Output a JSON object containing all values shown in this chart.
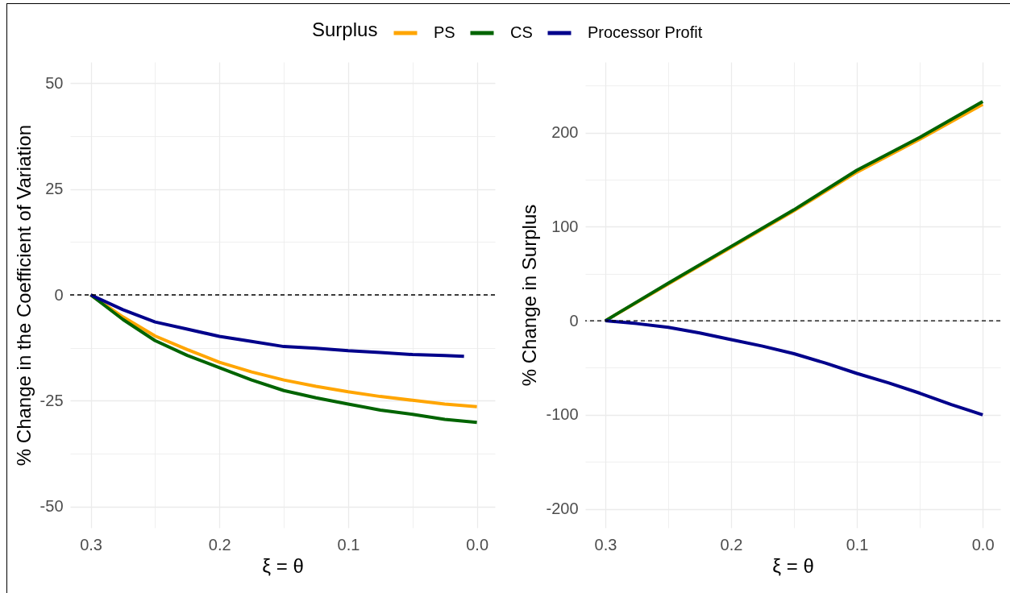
{
  "chart_data": [
    {
      "type": "line",
      "xlabel": "ξ = θ",
      "ylabel": "% Change in the Coefficient of Variation",
      "legend": "top",
      "legend_title": "Surplus",
      "grid": true,
      "xlim": [
        0.316,
        -0.014
      ],
      "ylim": [
        -55,
        55
      ],
      "xticks": [
        0.3,
        0.2,
        0.1,
        {
          "value": 0,
          "label": "0.0"
        }
      ],
      "yticks": [
        -50,
        -25,
        0,
        25,
        50
      ],
      "ref_lines": [
        {
          "axis": "y",
          "value": 0,
          "color": "#000000",
          "line_style": "dashed"
        }
      ],
      "x": [
        0.3,
        0.275,
        0.25,
        0.225,
        0.2,
        0.175,
        0.15,
        0.125,
        0.1,
        0.075,
        0.05,
        0.025,
        0
      ],
      "series": [
        {
          "name": "PS",
          "color": "#ffa500",
          "values": [
            0,
            -5.2,
            -9.7,
            -12.9,
            -15.9,
            -18.2,
            -20.1,
            -21.6,
            -22.9,
            -24.0,
            -24.9,
            -25.8,
            -26.4
          ]
        },
        {
          "name": "CS",
          "color": "#006400",
          "values": [
            0,
            -5.8,
            -10.8,
            -14.3,
            -17.2,
            -20.1,
            -22.6,
            -24.3,
            -25.8,
            -27.2,
            -28.2,
            -29.4,
            -30.1
          ]
        },
        {
          "name": "Processor Profit",
          "color": "#00008b",
          "x": [
            0.3,
            0.275,
            0.25,
            0.225,
            0.2,
            0.175,
            0.15,
            0.125,
            0.1,
            0.075,
            0.05,
            0.025,
            0.01
          ],
          "values": [
            0,
            -3.5,
            -6.4,
            -8.1,
            -9.8,
            -11.0,
            -12.2,
            -12.6,
            -13.2,
            -13.6,
            -14.1,
            -14.3,
            -14.5
          ]
        }
      ]
    },
    {
      "type": "line",
      "xlabel": "ξ = θ",
      "ylabel": "% Change in Surplus",
      "grid": true,
      "xlim": [
        0.316,
        -0.014
      ],
      "ylim": [
        -220,
        275
      ],
      "xticks": [
        0.3,
        0.2,
        0.1,
        {
          "value": 0,
          "label": "0.0"
        }
      ],
      "yticks": [
        -200,
        -100,
        0,
        100,
        200
      ],
      "ref_lines": [
        {
          "axis": "y",
          "value": 0,
          "color": "#000000",
          "line_style": "dashed"
        }
      ],
      "x": [
        0.3,
        0.25,
        0.2,
        0.15,
        0.1,
        0.05,
        0
      ],
      "series": [
        {
          "name": "PS",
          "color": "#ffa500",
          "values": [
            0,
            39,
            78,
            117,
            158,
            193,
            230
          ]
        },
        {
          "name": "CS",
          "color": "#006400",
          "values": [
            0,
            40,
            79,
            118,
            160,
            195,
            233
          ]
        },
        {
          "name": "Processor Profit",
          "color": "#00008b",
          "x": [
            0.3,
            0.275,
            0.25,
            0.225,
            0.2,
            0.175,
            0.15,
            0.125,
            0.1,
            0.075,
            0.05,
            0.025,
            0
          ],
          "values": [
            0,
            -3,
            -7,
            -13,
            -20,
            -27,
            -35,
            -45,
            -56,
            -66,
            -77,
            -89,
            -100
          ]
        }
      ]
    }
  ]
}
